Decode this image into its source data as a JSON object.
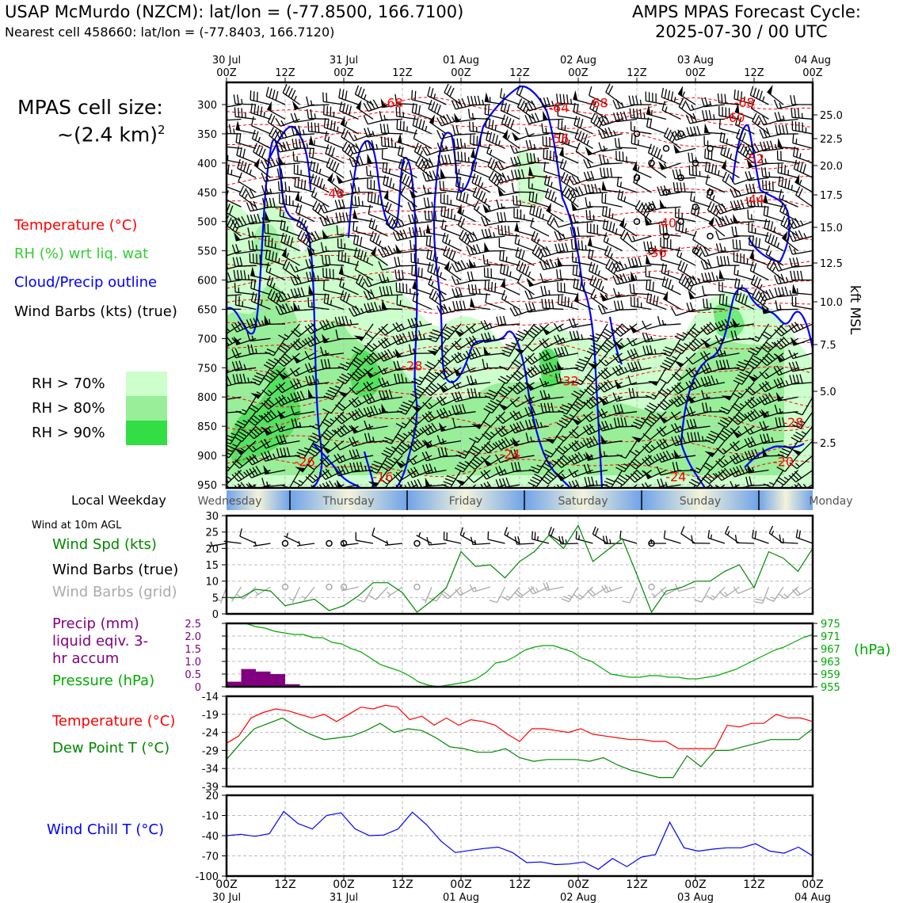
{
  "header": {
    "station": "USAP McMurdo (NZCM): lat/lon = (-77.8500, 166.7100)",
    "nearest_cell": "Nearest cell 458660: lat/lon = (-77.8403, 166.7120)",
    "cycle_line1": "AMPS MPAS Forecast Cycle:",
    "cycle_line2": "2025-07-30 / 00 UTC"
  },
  "left_panel": {
    "cell_size_label": "MPAS cell size:",
    "cell_size_value": "~(2.4 km)",
    "cell_size_exp": "2",
    "legend": [
      {
        "text": "Temperature (°C)",
        "color": "#ff0000"
      },
      {
        "text": "RH (%) wrt liq. wat",
        "color": "#33cc33"
      },
      {
        "text": "Cloud/Precip outline",
        "color": "#0000ff"
      },
      {
        "text": "Wind Barbs (kts) (true)",
        "color": "#000000"
      }
    ],
    "rh_legend": [
      {
        "text": "RH > 70%",
        "color": "#ccffcc"
      },
      {
        "text": "RH > 80%",
        "color": "#99ee99"
      },
      {
        "text": "RH > 90%",
        "color": "#33dd44"
      }
    ]
  },
  "colors": {
    "temp": "#ff0000",
    "dew": "#008800",
    "pressure": "#00aa00",
    "windchill": "#0000ff",
    "precip": "#800080",
    "grid_barbs": "#aaaaaa"
  },
  "time_axis": {
    "top_ticks": [
      {
        "l1": "30 Jul",
        "l2": "00Z"
      },
      {
        "l1": "",
        "l2": "12Z"
      },
      {
        "l1": "31 Jul",
        "l2": "00Z"
      },
      {
        "l1": "",
        "l2": "12Z"
      },
      {
        "l1": "01 Aug",
        "l2": "00Z"
      },
      {
        "l1": "",
        "l2": "12Z"
      },
      {
        "l1": "02 Aug",
        "l2": "00Z"
      },
      {
        "l1": "",
        "l2": "12Z"
      },
      {
        "l1": "03 Aug",
        "l2": "00Z"
      },
      {
        "l1": "",
        "l2": "12Z"
      },
      {
        "l1": "04 Aug",
        "l2": "00Z"
      }
    ],
    "bottom_ticks": [
      {
        "l1": "00Z",
        "l2": "30 Jul"
      },
      {
        "l1": "12Z",
        "l2": ""
      },
      {
        "l1": "00Z",
        "l2": "31 Jul"
      },
      {
        "l1": "12Z",
        "l2": ""
      },
      {
        "l1": "00Z",
        "l2": "01 Aug"
      },
      {
        "l1": "12Z",
        "l2": ""
      },
      {
        "l1": "00Z",
        "l2": "02 Aug"
      },
      {
        "l1": "12Z",
        "l2": ""
      },
      {
        "l1": "00Z",
        "l2": "03 Aug"
      },
      {
        "l1": "12Z",
        "l2": ""
      },
      {
        "l1": "00Z",
        "l2": "04 Aug"
      }
    ]
  },
  "weekday_bar": {
    "label": "Local Weekday",
    "days": [
      "Wednesday",
      "Thursday",
      "Friday",
      "Saturday",
      "Sunday",
      "Monday"
    ]
  },
  "chart_data": [
    {
      "type": "heatmap",
      "ylabel": "kft MSL",
      "y_pressure_ticks": [
        300,
        350,
        400,
        450,
        500,
        550,
        600,
        650,
        700,
        750,
        800,
        850,
        900,
        950
      ],
      "y_height_ticks": [
        "25.0",
        "22.5",
        "20.0",
        "17.5",
        "15.0",
        "12.5",
        "10.0",
        "7.5",
        "5.0",
        "2.5"
      ],
      "temp_contour_labels": [
        {
          "text": "-68",
          "t": 17,
          "p": 305
        },
        {
          "text": "-68",
          "t": 38,
          "p": 305
        },
        {
          "text": "-68",
          "t": 53,
          "p": 304
        },
        {
          "text": "-64",
          "t": 34,
          "p": 313
        },
        {
          "text": "-60",
          "t": 52,
          "p": 330
        },
        {
          "text": "-56",
          "t": 34,
          "p": 366
        },
        {
          "text": "-52",
          "t": 54,
          "p": 400
        },
        {
          "text": "-48",
          "t": 11,
          "p": 460
        },
        {
          "text": "-44",
          "t": 54,
          "p": 470
        },
        {
          "text": "-40",
          "t": 45,
          "p": 510
        },
        {
          "text": "-36",
          "t": 44,
          "p": 561
        },
        {
          "text": "-28",
          "t": 19,
          "p": 754
        },
        {
          "text": "-32",
          "t": 35,
          "p": 780
        },
        {
          "text": "-28",
          "t": 58,
          "p": 851
        },
        {
          "text": "-24",
          "t": 29,
          "p": 905
        },
        {
          "text": "-26",
          "t": 8,
          "p": 918
        },
        {
          "text": "-20",
          "t": 57,
          "p": 918
        },
        {
          "text": "-16",
          "t": 16,
          "p": 944
        },
        {
          "text": "-24",
          "t": 46,
          "p": 944
        }
      ]
    },
    {
      "type": "line",
      "title": "Wind at 10m AGL",
      "legend": [
        "Wind Spd (kts)",
        "Wind Barbs (true)",
        "Wind Barbs (grid)"
      ],
      "x_hours": [
        0,
        3,
        6,
        9,
        12,
        15,
        18,
        21,
        24,
        27,
        30,
        33,
        36,
        39,
        42,
        45,
        48,
        51,
        54,
        57,
        60,
        63,
        66,
        69,
        72,
        75,
        78,
        81,
        84,
        87,
        90,
        93,
        96,
        99,
        102,
        105,
        108,
        111,
        114,
        117,
        120
      ],
      "ylim": [
        0,
        30
      ],
      "yticks": [
        0,
        5,
        10,
        15,
        20,
        25,
        30
      ],
      "series": [
        {
          "name": "Wind Spd (kts)",
          "values": [
            5,
            5,
            7.5,
            7,
            2.5,
            3.5,
            4.5,
            1,
            2.5,
            5.5,
            9.5,
            9.5,
            6.5,
            0.5,
            4,
            8,
            19,
            14.5,
            15,
            11,
            16,
            19,
            24,
            20,
            27,
            16,
            19.5,
            23,
            12,
            0.5,
            7,
            8,
            10,
            10,
            13,
            15,
            8,
            19,
            17,
            13,
            20
          ]
        }
      ]
    },
    {
      "type": "bar",
      "legend": [
        "Precip (mm) liquid eqiv. 3-hr accum",
        "Pressure (hPa)"
      ],
      "precip_x_hours": [
        0,
        3,
        6,
        9,
        12,
        15,
        18,
        21
      ],
      "precip_values": [
        0.2,
        0.7,
        0.6,
        0.5,
        0.1,
        0,
        0,
        0
      ],
      "precip_ylim": [
        0,
        2.5
      ],
      "precip_yticks": [
        "0",
        "0.5",
        "1.0",
        "1.5",
        "2.0",
        "2.5"
      ],
      "pressure_ylim": [
        955,
        975
      ],
      "pressure_yticks": [
        "955",
        "959",
        "963",
        "967",
        "971",
        "975"
      ],
      "pressure_unit": "(hPa)",
      "series": [
        {
          "name": "Pressure (hPa)",
          "values": [
            975,
            975,
            975,
            974,
            973.5,
            972.5,
            972,
            971.5,
            971.5,
            970.5,
            970.5,
            969,
            968.5,
            967,
            966,
            964,
            962,
            961,
            960,
            958.5,
            956.5,
            955.5,
            955,
            955.5,
            956,
            956.5,
            957.5,
            959.5,
            962.5,
            963,
            964.5,
            966.5,
            967.5,
            968,
            968,
            967,
            966,
            964,
            963,
            961,
            959,
            958.5,
            958,
            958,
            958.5,
            958.5,
            958,
            958,
            957.5,
            957.5,
            958,
            958.5,
            959.5,
            960.5,
            962,
            963.5,
            965,
            966.5,
            967.5,
            969,
            970.5,
            971.5
          ]
        }
      ]
    },
    {
      "type": "line",
      "legend": [
        "Temperature (°C)",
        "Dew Point T (°C)"
      ],
      "ylim": [
        -39,
        -14
      ],
      "yticks": [
        -14,
        -19,
        -24,
        -29,
        -34,
        -39
      ],
      "series": [
        {
          "name": "Temperature (°C)",
          "values": [
            -27,
            -25,
            -20,
            -18.5,
            -17.5,
            -18,
            -19,
            -20,
            -19,
            -21,
            -19,
            -17,
            -17.5,
            -16.5,
            -17,
            -20.5,
            -19.5,
            -22,
            -20,
            -22,
            -20.5,
            -21,
            -22,
            -24.5,
            -26.5,
            -23,
            -23,
            -23.5,
            -24,
            -23,
            -24.5,
            -25,
            -25.5,
            -26,
            -26,
            -26.5,
            -26.5,
            -28.5,
            -28.5,
            -28.5,
            -28.5,
            -22,
            -22.5,
            -21.5,
            -21.5,
            -19,
            -20,
            -20,
            -21
          ]
        },
        {
          "name": "Dew Point T (°C)",
          "values": [
            -31.5,
            -27,
            -23,
            -21.5,
            -20,
            -22.5,
            -24.5,
            -26,
            -25.5,
            -25,
            -23.5,
            -21.5,
            -24,
            -23,
            -23.5,
            -25.5,
            -28,
            -28.5,
            -29.5,
            -29.5,
            -28.5,
            -31,
            -32,
            -31.5,
            -31.5,
            -31.5,
            -32,
            -31,
            -33,
            -34.5,
            -35.5,
            -36.5,
            -36.5,
            -30.5,
            -33.5,
            -29,
            -29,
            -28,
            -27,
            -26,
            -26,
            -26,
            -23
          ]
        }
      ]
    },
    {
      "type": "line",
      "legend": [
        "Wind Chill T (°C)"
      ],
      "ylim": [
        -100,
        20
      ],
      "yticks": [
        20,
        -10,
        -40,
        -70,
        -100
      ],
      "series": [
        {
          "name": "Wind Chill T (°C)",
          "values": [
            -40,
            -38,
            -41,
            -37,
            -4,
            -22,
            -30,
            -10,
            -6,
            -30,
            -40,
            -39,
            -30,
            -5,
            -24,
            -48,
            -65,
            -62,
            -59,
            -57,
            -65,
            -80,
            -79,
            -83,
            -82,
            -79,
            -90,
            -74,
            -86,
            -72,
            -68,
            -20,
            -58,
            -63,
            -60,
            -58,
            -58,
            -52,
            -63,
            -66,
            -57,
            -70
          ]
        }
      ]
    }
  ]
}
